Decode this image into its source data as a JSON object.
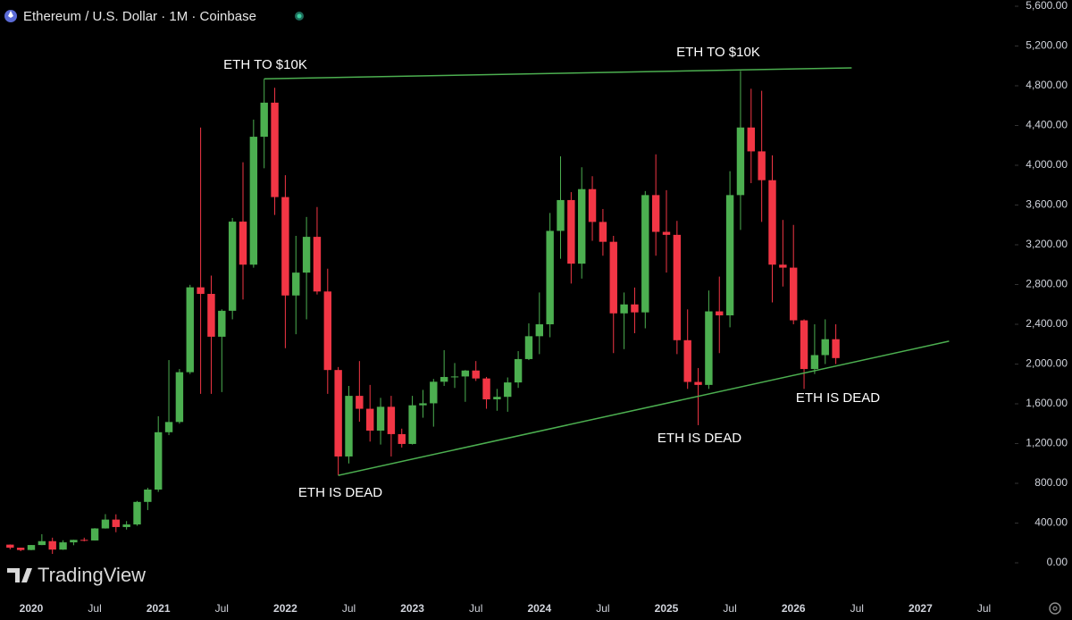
{
  "chart_data": {
    "type": "candlestick",
    "title": "Ethereum / U.S. Dollar · 1M · Coinbase",
    "watermark": "TradingView",
    "categories": [
      null,
      null,
      "2020",
      null,
      null,
      null,
      null,
      null,
      "Jul",
      null,
      null,
      null,
      null,
      null,
      "2021",
      null,
      null,
      null,
      null,
      null,
      "Jul",
      null,
      null,
      null,
      null,
      null,
      "2022",
      null,
      null,
      null,
      null,
      null,
      "Jul",
      null,
      null,
      null,
      null,
      null,
      "2023",
      null,
      null,
      null,
      null,
      null,
      "Jul",
      null,
      null,
      null,
      null,
      null,
      "2024",
      null,
      null,
      null,
      null,
      null,
      "Jul",
      null,
      null,
      null,
      null,
      null,
      "2025",
      null,
      null,
      null,
      null,
      null,
      "Jul",
      null,
      null,
      null,
      null,
      null,
      "2026",
      null,
      null,
      null,
      null,
      null,
      "Jul",
      null,
      null,
      null,
      null,
      null,
      "2027",
      null,
      null,
      null,
      null,
      null,
      "Jul"
    ],
    "open": [
      183,
      152,
      129,
      179,
      218,
      133,
      206,
      231,
      225,
      346,
      435,
      360,
      386,
      613,
      737,
      1314,
      1417,
      1918,
      2772,
      2706,
      2275,
      2536,
      3433,
      3000,
      4287,
      4630,
      3680,
      2690,
      2920,
      3280,
      2730,
      1940,
      1070,
      1680,
      1550,
      1330,
      1570,
      1295,
      1196,
      1585,
      1605,
      1822,
      1870,
      1875,
      1935,
      1855,
      1645,
      1670,
      1815,
      2050,
      2280,
      2400,
      3340,
      3650,
      3010,
      3760,
      3430,
      3230,
      2510,
      2600,
      2520,
      3700,
      3330,
      3300,
      2240,
      1820,
      1790,
      2530,
      2490,
      3700,
      4380,
      4140,
      3850,
      3000,
      2970,
      2440,
      1950,
      2090,
      2250,
      null,
      null,
      null,
      null,
      null,
      null,
      null,
      null,
      null,
      null,
      null,
      null,
      null,
      null
    ],
    "high": [
      185,
      153,
      180,
      288,
      253,
      227,
      232,
      253,
      349,
      490,
      488,
      420,
      623,
      755,
      1475,
      2040,
      1950,
      2797,
      4380,
      2890,
      2550,
      3470,
      4030,
      4460,
      4870,
      4780,
      3900,
      3290,
      3480,
      3580,
      2960,
      1970,
      1780,
      2030,
      1790,
      1660,
      1680,
      1350,
      1680,
      1740,
      1850,
      2140,
      2010,
      1940,
      2030,
      1870,
      1750,
      1865,
      2130,
      2410,
      2720,
      3520,
      4090,
      3730,
      3980,
      3890,
      3560,
      3290,
      2720,
      2770,
      3740,
      4110,
      3750,
      3440,
      2550,
      1960,
      2740,
      2880,
      3940,
      4950,
      4770,
      4750,
      4100,
      3450,
      3400,
      2450,
      2400,
      2450,
      2400,
      null,
      null,
      null,
      null,
      null,
      null,
      null,
      null,
      null,
      null,
      null,
      null,
      null,
      null
    ],
    "low": [
      135,
      117,
      127,
      178,
      90,
      130,
      177,
      216,
      224,
      344,
      308,
      335,
      373,
      531,
      714,
      1285,
      1400,
      1900,
      1700,
      1700,
      1718,
      2450,
      2650,
      2970,
      3970,
      3500,
      2160,
      2300,
      2450,
      2700,
      1700,
      880,
      1000,
      1420,
      1220,
      1190,
      1070,
      1160,
      1190,
      1460,
      1370,
      1780,
      1760,
      1620,
      1830,
      1550,
      1530,
      1520,
      1760,
      2040,
      2100,
      2270,
      3060,
      2810,
      2860,
      3240,
      3090,
      2110,
      2150,
      2310,
      2360,
      3090,
      2920,
      2100,
      1750,
      1385,
      1750,
      2110,
      2370,
      3350,
      3820,
      3430,
      2620,
      2780,
      2400,
      1750,
      1900,
      2000,
      2000,
      null,
      null,
      null,
      null,
      null,
      null,
      null,
      null,
      null,
      null,
      null,
      null,
      null,
      null
    ],
    "close": [
      152,
      129,
      179,
      218,
      133,
      206,
      231,
      225,
      346,
      435,
      360,
      386,
      613,
      737,
      1314,
      1417,
      1918,
      2772,
      2706,
      2275,
      2536,
      3433,
      3000,
      4287,
      4630,
      3680,
      2690,
      2920,
      3280,
      2730,
      1940,
      1070,
      1680,
      1550,
      1330,
      1570,
      1295,
      1196,
      1585,
      1605,
      1822,
      1870,
      1875,
      1935,
      1855,
      1645,
      1670,
      1815,
      2050,
      2280,
      2400,
      3340,
      3650,
      3010,
      3760,
      3430,
      3230,
      2510,
      2600,
      2520,
      3700,
      3330,
      3300,
      2240,
      1820,
      1790,
      2530,
      2490,
      3700,
      4380,
      4140,
      3850,
      3000,
      2970,
      2440,
      1950,
      2090,
      2250,
      2060,
      null,
      null,
      null,
      null,
      null,
      null,
      null,
      null,
      null,
      null,
      null,
      null,
      null,
      null
    ],
    "up_color": "#4caf50",
    "down_color": "#f23645",
    "ylim": [
      0,
      5600
    ],
    "yticks": [
      {
        "value": 0,
        "label": "0.00"
      },
      {
        "value": 400,
        "label": "400.00"
      },
      {
        "value": 800,
        "label": "800.00"
      },
      {
        "value": 1200,
        "label": "1,200.00"
      },
      {
        "value": 1600,
        "label": "1,600.00"
      },
      {
        "value": 2000,
        "label": "2,000.00"
      },
      {
        "value": 2400,
        "label": "2,400.00"
      },
      {
        "value": 2800,
        "label": "2,800.00"
      },
      {
        "value": 3200,
        "label": "3,200.00"
      },
      {
        "value": 3600,
        "label": "3,600.00"
      },
      {
        "value": 4000,
        "label": "4,000.00"
      },
      {
        "value": 4400,
        "label": "4,400.00"
      },
      {
        "value": 4800,
        "label": "4,800.00"
      },
      {
        "value": 5200,
        "label": "5,200.00"
      },
      {
        "value": 5600,
        "label": "5,600.00"
      }
    ],
    "trendlines": [
      {
        "values": [
          4870,
          4980
        ],
        "color": "#4caf50"
      },
      {
        "values": [
          880,
          2230
        ],
        "color": "#4caf50"
      }
    ],
    "annotations": [
      "ETH TO $10K",
      "ETH TO $10K",
      "ETH IS DEAD",
      "ETH IS DEAD",
      "ETH IS DEAD"
    ]
  }
}
